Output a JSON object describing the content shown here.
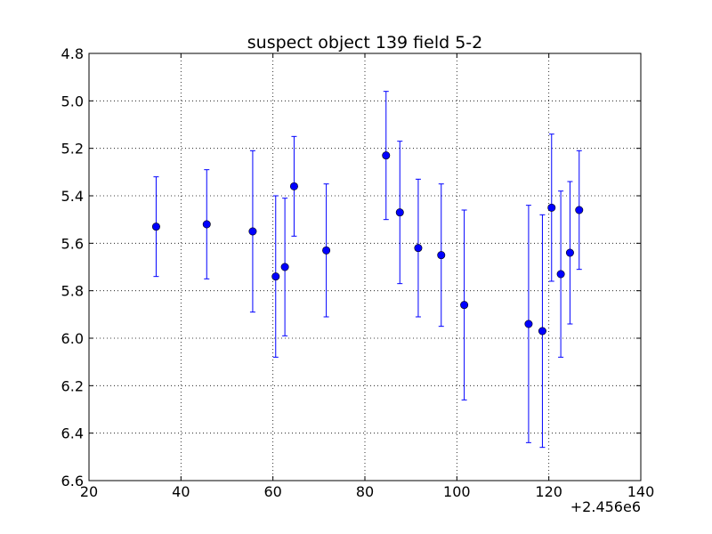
{
  "chart_data": {
    "type": "scatter",
    "title": "suspect object 139 field 5-2",
    "xlabel": "",
    "ylabel": "",
    "x_offset_label": "+2.456e6",
    "xlim": [
      20,
      140
    ],
    "ylim": [
      4.8,
      6.6
    ],
    "y_inverted": true,
    "grid": true,
    "marker_color": "#0000ff",
    "x_ticks": [
      "20",
      "40",
      "60",
      "80",
      "100",
      "120",
      "140"
    ],
    "y_ticks": [
      "4.8",
      "5.0",
      "5.2",
      "5.4",
      "5.6",
      "5.8",
      "6.0",
      "6.2",
      "6.4",
      "6.6"
    ],
    "x_tick_values": [
      20,
      40,
      60,
      80,
      100,
      120,
      140
    ],
    "y_tick_values": [
      4.8,
      5.0,
      5.2,
      5.4,
      5.6,
      5.8,
      6.0,
      6.2,
      6.4,
      6.6
    ],
    "points": [
      {
        "x": 34.6,
        "y": 5.53,
        "err": 0.21
      },
      {
        "x": 45.6,
        "y": 5.52,
        "err": 0.23
      },
      {
        "x": 55.6,
        "y": 5.55,
        "err": 0.34
      },
      {
        "x": 60.6,
        "y": 5.74,
        "err": 0.34
      },
      {
        "x": 62.6,
        "y": 5.7,
        "err": 0.29
      },
      {
        "x": 64.6,
        "y": 5.36,
        "err": 0.21
      },
      {
        "x": 71.6,
        "y": 5.63,
        "err": 0.28
      },
      {
        "x": 84.6,
        "y": 5.23,
        "err": 0.27
      },
      {
        "x": 87.6,
        "y": 5.47,
        "err": 0.3
      },
      {
        "x": 91.6,
        "y": 5.62,
        "err": 0.29
      },
      {
        "x": 96.6,
        "y": 5.65,
        "err": 0.3
      },
      {
        "x": 101.6,
        "y": 5.86,
        "err": 0.4
      },
      {
        "x": 115.6,
        "y": 5.94,
        "err": 0.5
      },
      {
        "x": 118.6,
        "y": 5.97,
        "err": 0.49
      },
      {
        "x": 120.6,
        "y": 5.45,
        "err": 0.31
      },
      {
        "x": 122.6,
        "y": 5.73,
        "err": 0.35
      },
      {
        "x": 124.6,
        "y": 5.64,
        "err": 0.3
      },
      {
        "x": 126.6,
        "y": 5.46,
        "err": 0.25
      }
    ]
  }
}
